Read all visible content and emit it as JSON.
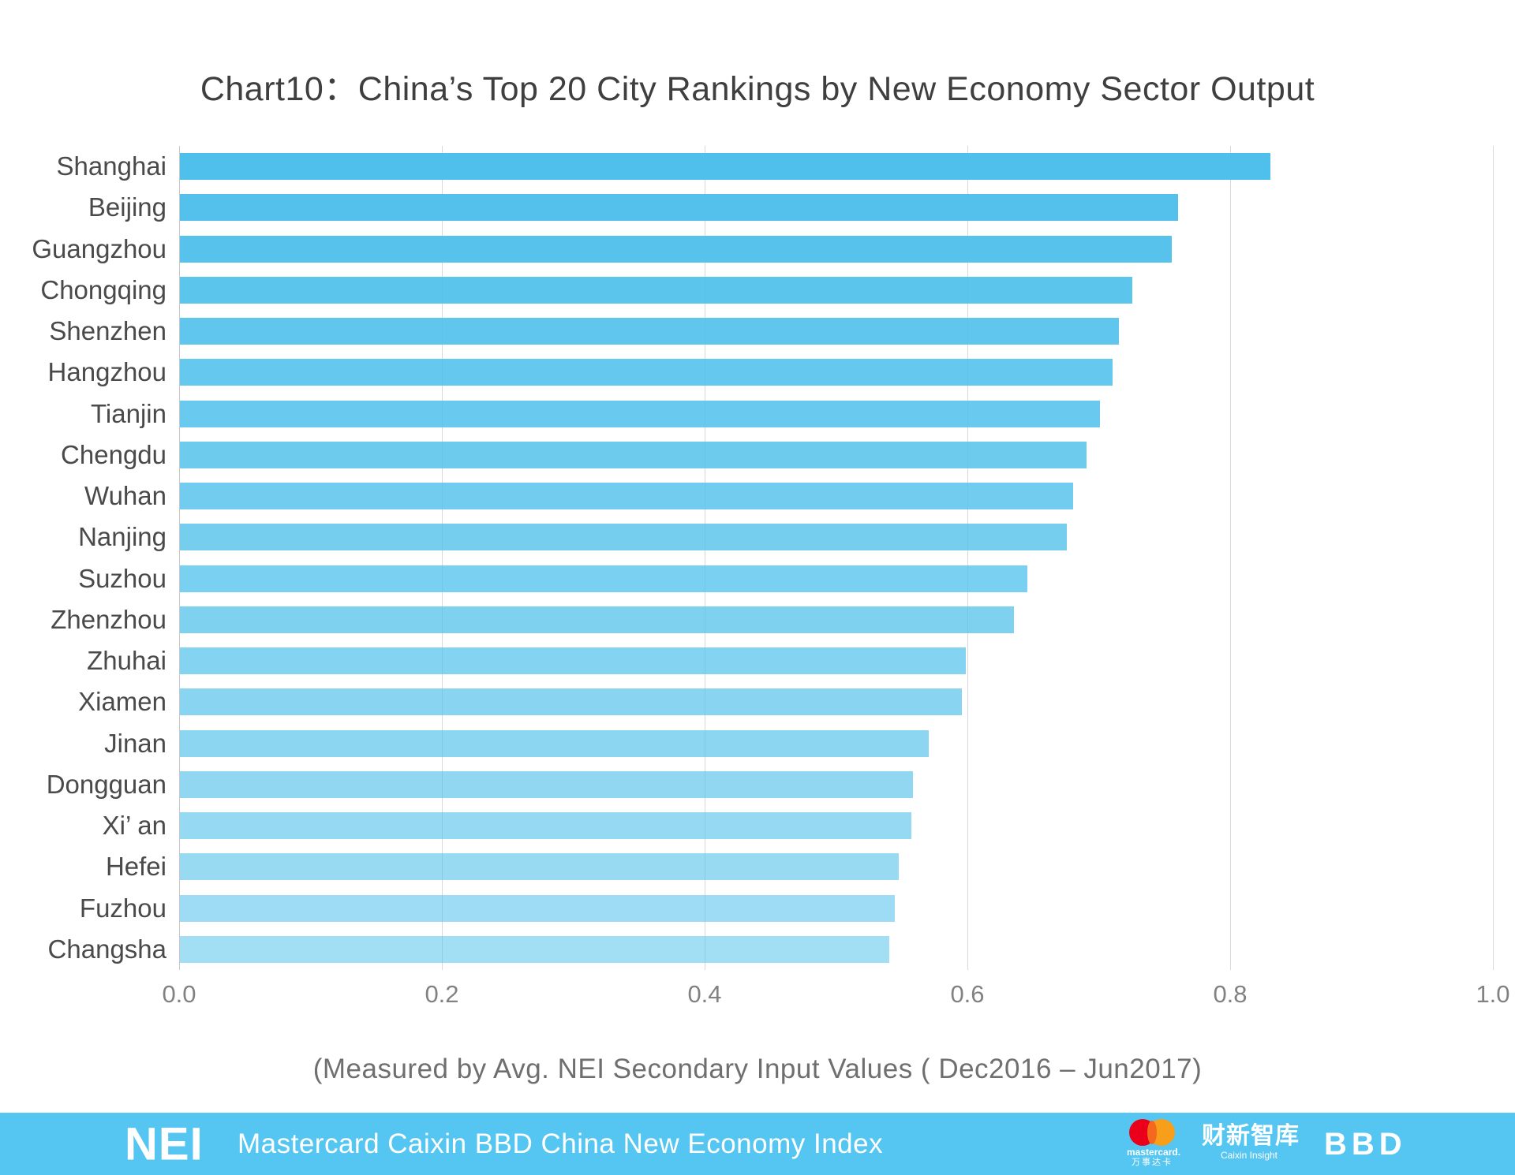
{
  "title": "Chart10：China’s Top 20 City Rankings by New Economy Sector Output",
  "subtitle": "(Measured by Avg. NEI Secondary Input Values ( Dec2016 – Jun2017)",
  "chart_data": {
    "type": "bar",
    "orientation": "horizontal",
    "title": "Chart10：China’s Top 20 City Rankings by New Economy Sector Output",
    "xlabel": "(Measured by Avg. NEI Secondary Input Values ( Dec2016 – Jun2017)",
    "categories": [
      "Shanghai",
      "Beijing",
      "Guangzhou",
      "Chongqing",
      "Shenzhen",
      "Hangzhou",
      "Tianjin",
      "Chengdu",
      "Wuhan",
      "Nanjing",
      "Suzhou",
      "Zhenzhou",
      "Zhuhai",
      "Xiamen",
      "Jinan",
      "Dongguan",
      "Xi’ an",
      "Hefei",
      "Fuzhou",
      "Changsha"
    ],
    "values": [
      0.83,
      0.76,
      0.755,
      0.725,
      0.715,
      0.71,
      0.7,
      0.69,
      0.68,
      0.675,
      0.645,
      0.635,
      0.598,
      0.595,
      0.57,
      0.558,
      0.557,
      0.547,
      0.544,
      0.54
    ],
    "xlim": [
      0.0,
      1.0
    ],
    "x_ticks": [
      0.0,
      0.2,
      0.4,
      0.6,
      0.8,
      1.0
    ],
    "x_tick_labels": [
      "0.0",
      "0.2",
      "0.4",
      "0.6",
      "0.8",
      "1.0"
    ],
    "grid": "vertical",
    "legend": "none",
    "bar_color_top": "#4FC0EB",
    "bar_color_bottom": "#A6DDF5",
    "bar_rgb": [
      79,
      192,
      235
    ],
    "bar_alpha_start": 1.0,
    "bar_alpha_end": 0.53,
    "grid_color": "#d9d9d9"
  },
  "footer": {
    "background": "#55C6F2",
    "nei_logo": "NEI",
    "text": "Mastercard Caixin BBD China New Economy Index",
    "logos": {
      "mastercard_label": "mastercard.",
      "mastercard_cn": "万事达卡",
      "mastercard_red": "#EB001B",
      "mastercard_orange": "#F79E1B",
      "mastercard_blend": "#F4691E",
      "caixin_cn": "财新智库",
      "caixin_en": "Caixin Insight",
      "bbd": "BBD"
    }
  }
}
